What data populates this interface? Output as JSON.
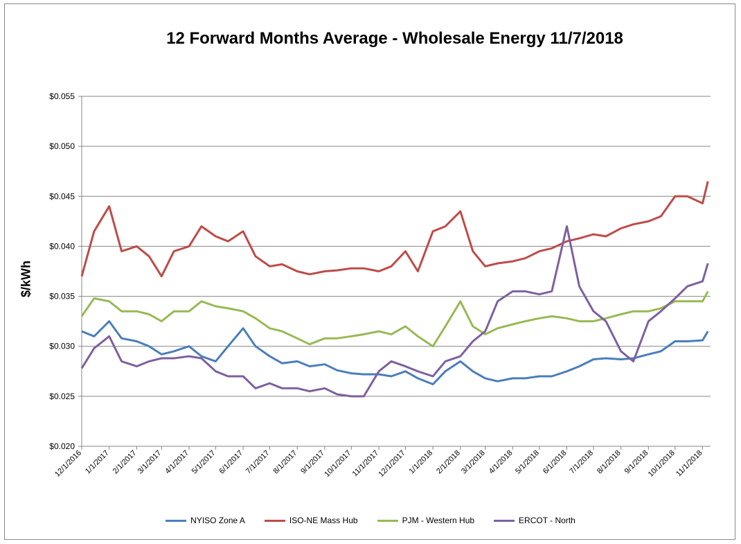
{
  "chart_data": {
    "type": "line",
    "title": "12 Forward Months Average - Wholesale Energy 11/7/2018",
    "ylabel": "$/kWh",
    "xlabel": "",
    "ylim": [
      0.02,
      0.055
    ],
    "yticks": [
      "$0.020",
      "$0.025",
      "$0.030",
      "$0.035",
      "$0.040",
      "$0.045",
      "$0.050",
      "$0.055"
    ],
    "ytick_values": [
      0.02,
      0.025,
      0.03,
      0.035,
      0.04,
      0.045,
      0.05,
      0.055
    ],
    "xticks": [
      "12/1/2016",
      "1/1/2017",
      "2/1/2017",
      "3/1/2017",
      "4/1/2017",
      "5/1/2017",
      "6/1/2017",
      "7/1/2017",
      "8/1/2017",
      "9/1/2017",
      "10/1/2017",
      "11/1/2017",
      "12/1/2017",
      "1/1/2018",
      "2/1/2018",
      "3/1/2018",
      "4/1/2018",
      "5/1/2018",
      "6/1/2018",
      "7/1/2018",
      "8/1/2018",
      "9/1/2018",
      "10/1/2018",
      "11/1/2018"
    ],
    "x": [
      "12/1/2016",
      "12/15/2016",
      "1/1/2017",
      "1/15/2017",
      "2/1/2017",
      "2/15/2017",
      "3/1/2017",
      "3/15/2017",
      "4/1/2017",
      "4/15/2017",
      "5/1/2017",
      "5/15/2017",
      "6/1/2017",
      "6/15/2017",
      "7/1/2017",
      "7/15/2017",
      "8/1/2017",
      "8/15/2017",
      "9/1/2017",
      "9/15/2017",
      "10/1/2017",
      "10/15/2017",
      "11/1/2017",
      "11/15/2017",
      "12/1/2017",
      "12/15/2017",
      "1/1/2018",
      "1/15/2018",
      "2/1/2018",
      "2/15/2018",
      "3/1/2018",
      "3/15/2018",
      "4/1/2018",
      "4/15/2018",
      "5/1/2018",
      "5/15/2018",
      "6/1/2018",
      "6/15/2018",
      "7/1/2018",
      "7/15/2018",
      "8/1/2018",
      "8/15/2018",
      "9/1/2018",
      "9/15/2018",
      "10/1/2018",
      "10/15/2018",
      "11/1/2018",
      "11/7/2018"
    ],
    "grid": true,
    "legend_position": "bottom",
    "series": [
      {
        "name": "NYISO Zone A",
        "color": "#4a7ebb",
        "values": [
          0.0315,
          0.031,
          0.0325,
          0.0308,
          0.0305,
          0.03,
          0.0292,
          0.0295,
          0.03,
          0.029,
          0.0285,
          0.03,
          0.0318,
          0.03,
          0.029,
          0.0283,
          0.0285,
          0.028,
          0.0282,
          0.0276,
          0.0273,
          0.0272,
          0.0272,
          0.027,
          0.0275,
          0.0268,
          0.0262,
          0.0275,
          0.0285,
          0.0275,
          0.0268,
          0.0265,
          0.0268,
          0.0268,
          0.027,
          0.027,
          0.0275,
          0.028,
          0.0287,
          0.0288,
          0.0287,
          0.0288,
          0.0292,
          0.0295,
          0.0305,
          0.0305,
          0.0306,
          0.0315
        ]
      },
      {
        "name": "ISO-NE Mass Hub",
        "color": "#be4b48",
        "values": [
          0.037,
          0.0415,
          0.044,
          0.0395,
          0.04,
          0.039,
          0.037,
          0.0395,
          0.04,
          0.042,
          0.041,
          0.0405,
          0.0415,
          0.039,
          0.038,
          0.0382,
          0.0375,
          0.0372,
          0.0375,
          0.0376,
          0.0378,
          0.0378,
          0.0375,
          0.038,
          0.0395,
          0.0375,
          0.0415,
          0.042,
          0.0435,
          0.0395,
          0.038,
          0.0383,
          0.0385,
          0.0388,
          0.0395,
          0.0398,
          0.0405,
          0.0408,
          0.0412,
          0.041,
          0.0418,
          0.0422,
          0.0425,
          0.043,
          0.045,
          0.045,
          0.0443,
          0.0465
        ]
      },
      {
        "name": "PJM - Western Hub",
        "color": "#98b954",
        "values": [
          0.033,
          0.0348,
          0.0345,
          0.0335,
          0.0335,
          0.0332,
          0.0325,
          0.0335,
          0.0335,
          0.0345,
          0.034,
          0.0338,
          0.0335,
          0.0328,
          0.0318,
          0.0315,
          0.0308,
          0.0302,
          0.0308,
          0.0308,
          0.031,
          0.0312,
          0.0315,
          0.0312,
          0.032,
          0.031,
          0.03,
          0.032,
          0.0345,
          0.032,
          0.0312,
          0.0318,
          0.0322,
          0.0325,
          0.0328,
          0.033,
          0.0328,
          0.0325,
          0.0325,
          0.0328,
          0.0332,
          0.0335,
          0.0335,
          0.0338,
          0.0345,
          0.0345,
          0.0345,
          0.0355
        ]
      },
      {
        "name": "ERCOT - North",
        "color": "#7d60a0",
        "values": [
          0.0278,
          0.0298,
          0.031,
          0.0285,
          0.028,
          0.0285,
          0.0288,
          0.0288,
          0.029,
          0.0288,
          0.0275,
          0.027,
          0.027,
          0.0258,
          0.0263,
          0.0258,
          0.0258,
          0.0255,
          0.0258,
          0.0252,
          0.025,
          0.025,
          0.0275,
          0.0285,
          0.028,
          0.0275,
          0.027,
          0.0285,
          0.029,
          0.0305,
          0.0315,
          0.0345,
          0.0355,
          0.0355,
          0.0352,
          0.0355,
          0.042,
          0.036,
          0.0335,
          0.0325,
          0.0295,
          0.0285,
          0.0325,
          0.0335,
          0.0348,
          0.036,
          0.0365,
          0.0383
        ]
      }
    ]
  }
}
